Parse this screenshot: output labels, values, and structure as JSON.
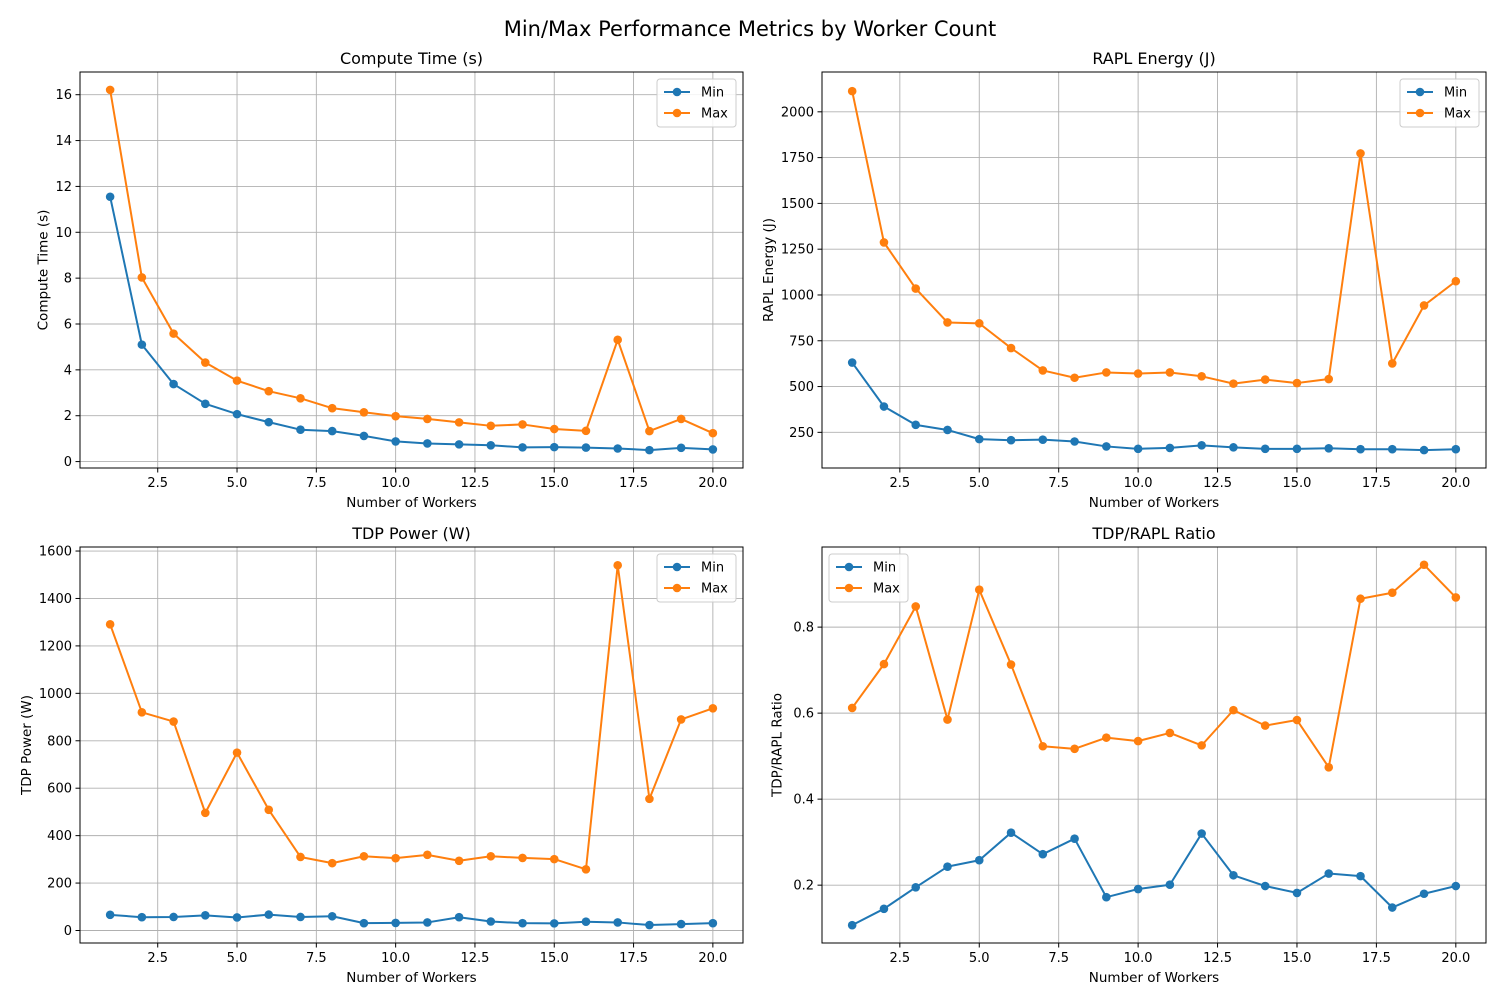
{
  "figure": {
    "suptitle": "Min/Max Performance Metrics by Worker Count"
  },
  "colors": {
    "min": "#1f77b4",
    "max": "#ff7f0e",
    "grid": "#b0b0b0"
  },
  "chart_data": [
    {
      "type": "line",
      "title": "Compute Time (s)",
      "xlabel": "Number of Workers",
      "ylabel": "Compute Time (s)",
      "xlim": [
        0.05,
        20.95
      ],
      "ylim": [
        -0.28,
        16.99
      ],
      "xticks": [
        2.5,
        5.0,
        7.5,
        10.0,
        12.5,
        15.0,
        17.5,
        20.0
      ],
      "xtick_labels": [
        "2.5",
        "5.0",
        "7.5",
        "10.0",
        "12.5",
        "15.0",
        "17.5",
        "20.0"
      ],
      "yticks": [
        0,
        2,
        4,
        6,
        8,
        10,
        12,
        14,
        16
      ],
      "ytick_labels": [
        "0",
        "2",
        "4",
        "6",
        "8",
        "10",
        "12",
        "14",
        "16"
      ],
      "grid": true,
      "legend": "upper right",
      "x": [
        1,
        2,
        3,
        4,
        5,
        6,
        7,
        8,
        9,
        10,
        11,
        12,
        13,
        14,
        15,
        16,
        17,
        18,
        19,
        20
      ],
      "series": [
        {
          "name": "Min",
          "values": [
            11.55,
            5.1,
            3.38,
            2.52,
            2.07,
            1.72,
            1.39,
            1.33,
            1.12,
            0.88,
            0.79,
            0.75,
            0.71,
            0.62,
            0.63,
            0.61,
            0.57,
            0.5,
            0.6,
            0.53
          ]
        },
        {
          "name": "Max",
          "values": [
            16.21,
            8.03,
            5.58,
            4.32,
            3.53,
            3.07,
            2.76,
            2.33,
            2.15,
            1.98,
            1.86,
            1.71,
            1.56,
            1.62,
            1.42,
            1.34,
            5.31,
            1.33,
            1.86,
            1.24
          ]
        }
      ]
    },
    {
      "type": "line",
      "title": "RAPL Energy (J)",
      "xlabel": "Number of Workers",
      "ylabel": "RAPL Energy (J)",
      "xlim": [
        0.05,
        20.95
      ],
      "ylim": [
        55.3,
        2217.4
      ],
      "xticks": [
        2.5,
        5.0,
        7.5,
        10.0,
        12.5,
        15.0,
        17.5,
        20.0
      ],
      "xtick_labels": [
        "2.5",
        "5.0",
        "7.5",
        "10.0",
        "12.5",
        "15.0",
        "17.5",
        "20.0"
      ],
      "yticks": [
        250,
        500,
        750,
        1000,
        1250,
        1500,
        1750,
        2000
      ],
      "ytick_labels": [
        "250",
        "500",
        "750",
        "1000",
        "1250",
        "1500",
        "1750",
        "2000"
      ],
      "grid": true,
      "legend": "upper right",
      "x": [
        1,
        2,
        3,
        4,
        5,
        6,
        7,
        8,
        9,
        10,
        11,
        12,
        13,
        14,
        15,
        16,
        17,
        18,
        19,
        20
      ],
      "series": [
        {
          "name": "Min",
          "values": [
            631,
            391,
            291,
            263,
            213,
            207,
            210,
            200,
            173,
            160,
            165,
            179,
            168,
            160,
            160,
            163,
            158,
            158,
            153,
            158
          ]
        },
        {
          "name": "Max",
          "values": [
            2113,
            1287,
            1035,
            850,
            845,
            710,
            588,
            548,
            577,
            571,
            577,
            556,
            516,
            538,
            519,
            541,
            1773,
            626,
            943,
            1075
          ]
        }
      ]
    },
    {
      "type": "line",
      "title": "TDP Power (W)",
      "xlabel": "Number of Workers",
      "ylabel": "TDP Power (W)",
      "xlim": [
        0.05,
        20.95
      ],
      "ylim": [
        -52.7,
        1617.0
      ],
      "xticks": [
        2.5,
        5.0,
        7.5,
        10.0,
        12.5,
        15.0,
        17.5,
        20.0
      ],
      "xtick_labels": [
        "2.5",
        "5.0",
        "7.5",
        "10.0",
        "12.5",
        "15.0",
        "17.5",
        "20.0"
      ],
      "yticks": [
        0,
        200,
        400,
        600,
        800,
        1000,
        1200,
        1400,
        1600
      ],
      "ytick_labels": [
        "0",
        "200",
        "400",
        "600",
        "800",
        "1000",
        "1200",
        "1400",
        "1600"
      ],
      "grid": true,
      "legend": "upper right",
      "x": [
        1,
        2,
        3,
        4,
        5,
        6,
        7,
        8,
        9,
        10,
        11,
        12,
        13,
        14,
        15,
        16,
        17,
        18,
        19,
        20
      ],
      "series": [
        {
          "name": "Min",
          "values": [
            66,
            56,
            57,
            64,
            55,
            67,
            57,
            60,
            31,
            32,
            34,
            56,
            38,
            31,
            30,
            37,
            34,
            23,
            27,
            31
          ]
        },
        {
          "name": "Max",
          "values": [
            1291,
            920,
            881,
            496,
            750,
            509,
            310,
            284,
            313,
            305,
            319,
            294,
            313,
            306,
            301,
            258,
            1540,
            555,
            890,
            937
          ]
        }
      ]
    },
    {
      "type": "line",
      "title": "TDP/RAPL Ratio",
      "xlabel": "Number of Workers",
      "ylabel": "TDP/RAPL Ratio",
      "xlim": [
        0.05,
        20.95
      ],
      "ylim": [
        0.0655,
        0.9863
      ],
      "xticks": [
        2.5,
        5.0,
        7.5,
        10.0,
        12.5,
        15.0,
        17.5,
        20.0
      ],
      "xtick_labels": [
        "2.5",
        "5.0",
        "7.5",
        "10.0",
        "12.5",
        "15.0",
        "17.5",
        "20.0"
      ],
      "yticks": [
        0.2,
        0.4,
        0.6,
        0.8
      ],
      "ytick_labels": [
        "0.2",
        "0.4",
        "0.6",
        "0.8"
      ],
      "grid": true,
      "legend": "upper left",
      "x": [
        1,
        2,
        3,
        4,
        5,
        6,
        7,
        8,
        9,
        10,
        11,
        12,
        13,
        14,
        15,
        16,
        17,
        18,
        19,
        20
      ],
      "series": [
        {
          "name": "Min",
          "values": [
            0.107,
            0.145,
            0.195,
            0.243,
            0.258,
            0.322,
            0.272,
            0.308,
            0.172,
            0.191,
            0.201,
            0.32,
            0.223,
            0.198,
            0.182,
            0.227,
            0.221,
            0.148,
            0.18,
            0.198
          ]
        },
        {
          "name": "Max",
          "values": [
            0.612,
            0.714,
            0.848,
            0.585,
            0.887,
            0.713,
            0.523,
            0.517,
            0.543,
            0.535,
            0.554,
            0.525,
            0.607,
            0.571,
            0.584,
            0.474,
            0.866,
            0.88,
            0.945,
            0.869
          ]
        }
      ]
    }
  ]
}
